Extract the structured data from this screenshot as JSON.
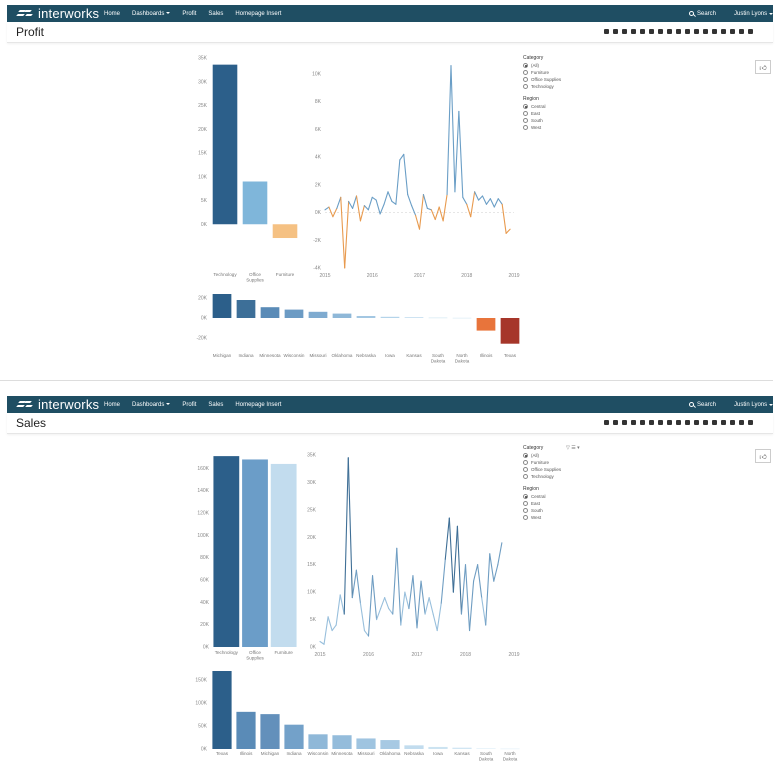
{
  "colors": {
    "topbar": "#1f4e63",
    "blue_dark": "#2c5f8a",
    "blue_mid": "#6b9dc8",
    "blue_light": "#c2dcee",
    "orange_light": "#f5c183",
    "orange": "#e8743b",
    "red_dark": "#a6362a",
    "line_blue": "#6a9ec6",
    "line_orange": "#e89a4e"
  },
  "nav": {
    "logo_text": "interworks",
    "items": [
      {
        "label": "Home"
      },
      {
        "label": "Dashboards",
        "has_caret": true
      },
      {
        "label": "Profit"
      },
      {
        "label": "Sales"
      },
      {
        "label": "Homepage Insert"
      }
    ],
    "search_label": "Search",
    "user_label": "Justin Lyons"
  },
  "toolbar_icons": [
    "expand-icon",
    "refresh-icon",
    "pause-icon",
    "data-icon",
    "image-icon",
    "pdf-icon",
    "crosstab-icon",
    "download-icon",
    "share-icon",
    "alert-icon",
    "subscribe-icon",
    "view-icon",
    "camera-icon",
    "comment-icon",
    "favorite-icon",
    "email-icon",
    "print-icon"
  ],
  "side_button_icon": "thumbs-up-icon",
  "filters": {
    "category_title": "Category",
    "category_options": [
      "(All)",
      "Furniture",
      "Office Supplies",
      "Technology"
    ],
    "category_selected": 0,
    "region_title": "Region",
    "region_options": [
      "Central",
      "East",
      "South",
      "West"
    ],
    "region_selected": 0,
    "sales_filter_icon_label": "▽ ☰ ▾"
  },
  "profit": {
    "title": "Profit"
  },
  "sales": {
    "title": "Sales"
  },
  "chart_data": [
    {
      "id": "profit-category",
      "type": "bar",
      "categories": [
        "Technology",
        "Office Supplies",
        "Furniture"
      ],
      "category_labels": [
        [
          "Technology"
        ],
        [
          "Office",
          "Supplies"
        ],
        [
          "Furniture"
        ]
      ],
      "values": [
        33600,
        9000,
        -2900
      ],
      "colors": [
        "#2c5f8a",
        "#7fb6da",
        "#f5c183"
      ],
      "ylim": [
        -5000,
        35000
      ],
      "yticks": [
        0,
        5000,
        10000,
        15000,
        20000,
        25000,
        30000,
        35000
      ],
      "ytick_labels": [
        "0K",
        "5K",
        "10K",
        "15K",
        "20K",
        "25K",
        "30K",
        "35K"
      ]
    },
    {
      "id": "profit-trend",
      "type": "line",
      "x_start": "2015-01",
      "x_ticks": [
        "2015",
        "2016",
        "2017",
        "2018",
        "2019"
      ],
      "values": [
        0.2,
        0.4,
        -0.3,
        0.3,
        1.1,
        -4.0,
        0.8,
        0.3,
        1.2,
        -0.6,
        0.5,
        0.2,
        1.1,
        0.9,
        -0.1,
        0.6,
        1.5,
        0.8,
        0.6,
        3.8,
        4.2,
        1.3,
        0.5,
        -0.2,
        -1.2,
        1.3,
        0.3,
        0.2,
        -0.5,
        0.4,
        -0.6,
        1.3,
        10.6,
        1.5,
        7.3,
        1.1,
        0.6,
        -0.3,
        1.5,
        0.9,
        1.2,
        0.6,
        1.0,
        0.4,
        1.0,
        0.6,
        -1.5,
        -1.2
      ],
      "ylim": [
        -4,
        10
      ],
      "yticks": [
        -4,
        -2,
        0,
        2,
        4,
        6,
        8,
        10
      ],
      "ytick_labels": [
        "-4K",
        "-2K",
        "0K",
        "2K",
        "4K",
        "6K",
        "8K",
        "10K"
      ]
    },
    {
      "id": "profit-state",
      "type": "bar",
      "categories": [
        "Michigan",
        "Indiana",
        "Minnesota",
        "Wisconsin",
        "Missouri",
        "Oklahoma",
        "Nebraska",
        "Iowa",
        "Kansas",
        "South Dakota",
        "North Dakota",
        "Illinois",
        "Texas"
      ],
      "category_labels": [
        [
          "Michigan"
        ],
        [
          "Indiana"
        ],
        [
          "Minnesota"
        ],
        [
          "Wisconsin"
        ],
        [
          "Missouri"
        ],
        [
          "Oklahoma"
        ],
        [
          "Nebraska"
        ],
        [
          "Iowa"
        ],
        [
          "Kansas"
        ],
        [
          "South",
          "Dakota"
        ],
        [
          "North",
          "Dakota"
        ],
        [
          "Illinois"
        ],
        [
          "Texas"
        ]
      ],
      "values": [
        24000,
        18000,
        10800,
        8400,
        6200,
        4400,
        2000,
        1200,
        800,
        400,
        200,
        -12600,
        -25700
      ],
      "colors": [
        "#2c5f8a",
        "#3d6f98",
        "#5a8bb7",
        "#6c9bc4",
        "#7fabd0",
        "#8fb8d8",
        "#a3c7e2",
        "#b4d4ea",
        "#c2dcee",
        "#cce3f1",
        "#d4e8f4",
        "#e8743b",
        "#a6362a"
      ],
      "ylim": [
        -30000,
        30000
      ],
      "yticks": [
        -20000,
        0,
        20000
      ],
      "ytick_labels": [
        "-20K",
        "0K",
        "20K"
      ]
    },
    {
      "id": "sales-category",
      "type": "bar",
      "categories": [
        "Technology",
        "Office Supplies",
        "Furniture"
      ],
      "category_labels": [
        [
          "Technology"
        ],
        [
          "Office",
          "Supplies"
        ],
        [
          "Furniture"
        ]
      ],
      "values": [
        171000,
        168000,
        164000
      ],
      "colors": [
        "#2c5f8a",
        "#6b9dc8",
        "#c2dcee"
      ],
      "ylim": [
        0,
        172000
      ],
      "yticks": [
        0,
        20000,
        40000,
        60000,
        80000,
        100000,
        120000,
        140000,
        160000
      ],
      "ytick_labels": [
        "0K",
        "20K",
        "40K",
        "60K",
        "80K",
        "100K",
        "120K",
        "140K",
        "160K"
      ]
    },
    {
      "id": "sales-trend",
      "type": "line",
      "x_start": "2015-01",
      "x_ticks": [
        "2015",
        "2016",
        "2017",
        "2018",
        "2019"
      ],
      "values": [
        1,
        0.5,
        5.5,
        3,
        4,
        9.5,
        6,
        34.5,
        9,
        14,
        8,
        3,
        2,
        13,
        5,
        7,
        9,
        7,
        6,
        18,
        4,
        10,
        7,
        13,
        3.5,
        12,
        6,
        9,
        6,
        3,
        8,
        16,
        23.5,
        10,
        22,
        6,
        15,
        3,
        12,
        15,
        9,
        4,
        17,
        12,
        15,
        19
      ],
      "ylim": [
        0,
        35
      ],
      "yticks": [
        0,
        5,
        10,
        15,
        20,
        25,
        30,
        35
      ],
      "ytick_labels": [
        "0K",
        "5K",
        "10K",
        "15K",
        "20K",
        "25K",
        "30K",
        "35K"
      ]
    },
    {
      "id": "sales-state",
      "type": "bar",
      "categories": [
        "Texas",
        "Illinois",
        "Michigan",
        "Indiana",
        "Wisconsin",
        "Minnesota",
        "Missouri",
        "Oklahoma",
        "Nebraska",
        "Iowa",
        "Kansas",
        "South Dakota",
        "North Dakota"
      ],
      "category_labels": [
        [
          "Texas"
        ],
        [
          "Illinois"
        ],
        [
          "Michigan"
        ],
        [
          "Indiana"
        ],
        [
          "Wisconsin"
        ],
        [
          "Minnesota"
        ],
        [
          "Missouri"
        ],
        [
          "Oklahoma"
        ],
        [
          "Nebraska"
        ],
        [
          "Iowa"
        ],
        [
          "Kansas"
        ],
        [
          "South",
          "Dakota"
        ],
        [
          "North",
          "Dakota"
        ]
      ],
      "values": [
        170000,
        81000,
        76000,
        53000,
        32000,
        30000,
        23000,
        19500,
        8000,
        4500,
        2900,
        1300,
        900
      ],
      "colors": [
        "#2c5f8a",
        "#5a8bb7",
        "#6390bb",
        "#73a1c9",
        "#8fb8d8",
        "#94bcdb",
        "#9fc4e0",
        "#a7c9e3",
        "#c2dcee",
        "#cce3f1",
        "#d1e6f3",
        "#dbecf6",
        "#dfeef7"
      ],
      "ylim": [
        0,
        170000
      ],
      "yticks": [
        0,
        50000,
        100000,
        150000
      ],
      "ytick_labels": [
        "0K",
        "50K",
        "100K",
        "150K"
      ]
    }
  ]
}
